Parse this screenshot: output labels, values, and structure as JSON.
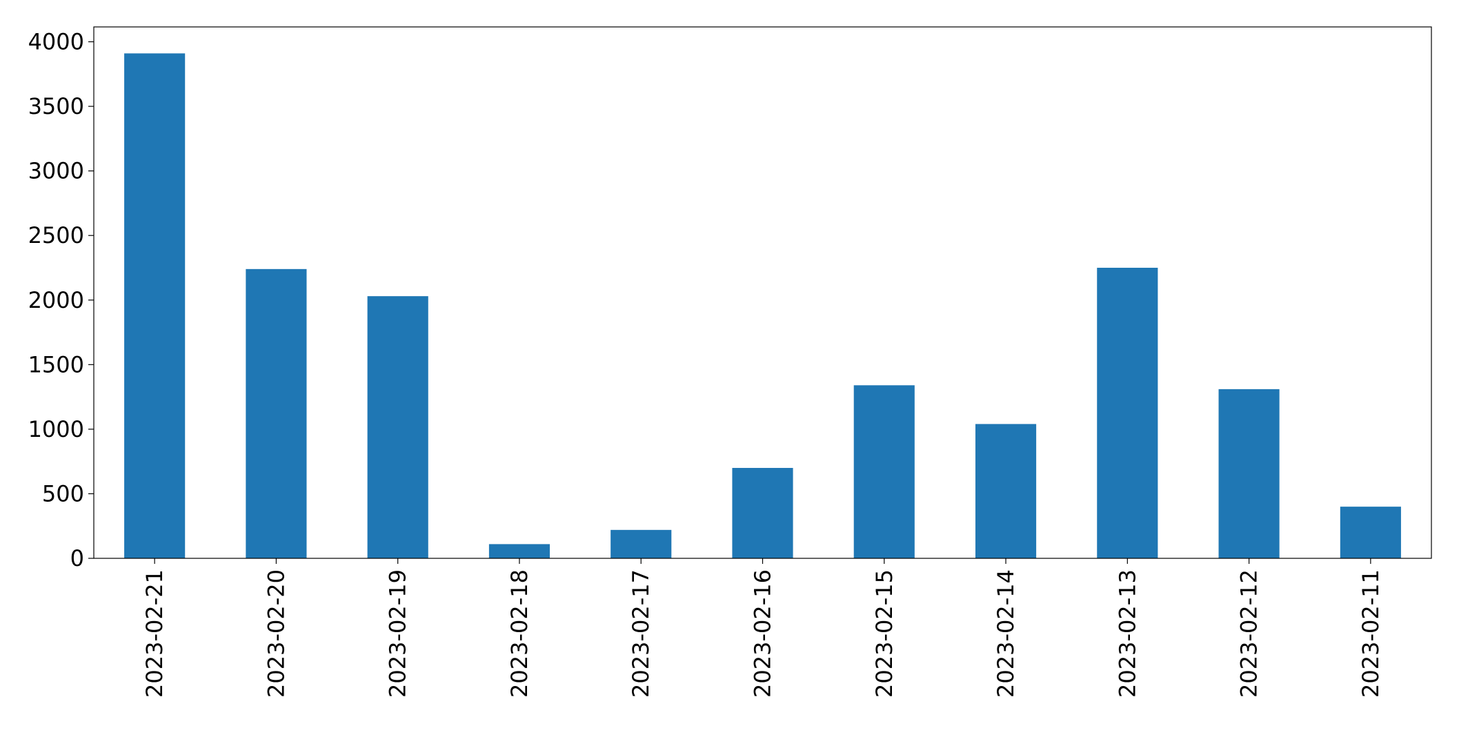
{
  "chart_data": {
    "type": "bar",
    "categories": [
      "2023-02-21",
      "2023-02-20",
      "2023-02-19",
      "2023-02-18",
      "2023-02-17",
      "2023-02-16",
      "2023-02-15",
      "2023-02-14",
      "2023-02-13",
      "2023-02-12",
      "2023-02-11"
    ],
    "values": [
      3910,
      2240,
      2030,
      110,
      220,
      700,
      1340,
      1040,
      2250,
      1310,
      400
    ],
    "color": "#1f77b4",
    "ylim": [
      0,
      4115
    ],
    "yticks": [
      0,
      500,
      1000,
      1500,
      2000,
      2500,
      3000,
      3500,
      4000
    ],
    "grid": false
  }
}
